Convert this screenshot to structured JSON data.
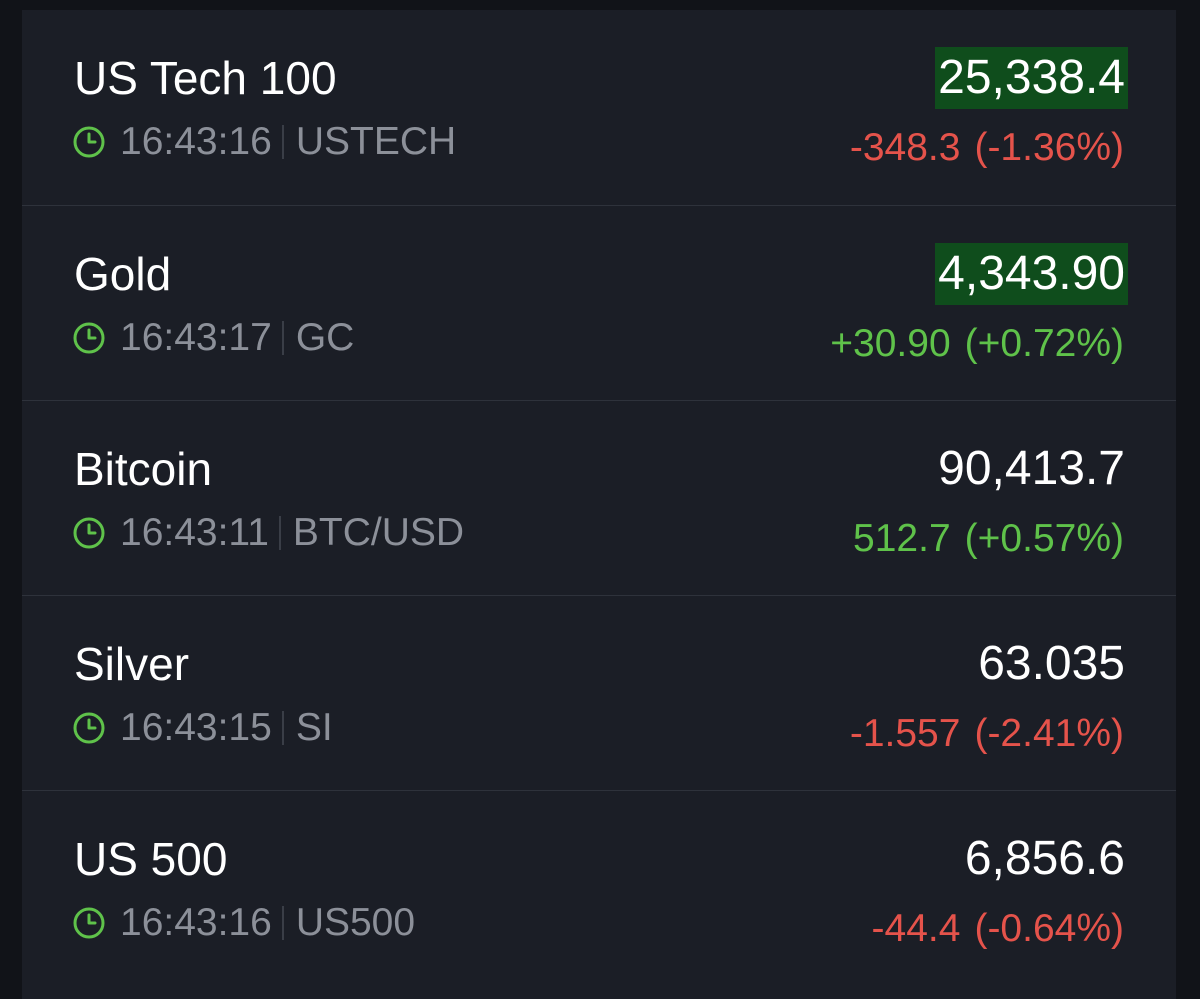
{
  "colors": {
    "background": "#1b1e26",
    "page_background": "#111318",
    "text_primary": "#ffffff",
    "text_secondary": "#8c9099",
    "positive": "#5fc24a",
    "negative": "#e5534b",
    "price_flash": "#0f4d1c",
    "divider": "#2e323b"
  },
  "icons": {
    "time": "clock-icon"
  },
  "watchlist": [
    {
      "name": "US Tech 100",
      "time": "16:43:16",
      "symbol": "USTECH",
      "price": "25,338.4",
      "price_flash": true,
      "change": "-348.3",
      "change_pct": "(-1.36%)",
      "direction": "negative"
    },
    {
      "name": "Gold",
      "time": "16:43:17",
      "symbol": "GC",
      "price": "4,343.90",
      "price_flash": true,
      "change": "+30.90",
      "change_pct": "(+0.72%)",
      "direction": "positive"
    },
    {
      "name": "Bitcoin",
      "time": "16:43:11",
      "symbol": "BTC/USD",
      "price": "90,413.7",
      "price_flash": false,
      "change": "512.7",
      "change_pct": "(+0.57%)",
      "direction": "positive"
    },
    {
      "name": "Silver",
      "time": "16:43:15",
      "symbol": "SI",
      "price": "63.035",
      "price_flash": false,
      "change": "-1.557",
      "change_pct": "(-2.41%)",
      "direction": "negative"
    },
    {
      "name": "US 500",
      "time": "16:43:16",
      "symbol": "US500",
      "price": "6,856.6",
      "price_flash": false,
      "change": "-44.4",
      "change_pct": "(-0.64%)",
      "direction": "negative"
    }
  ]
}
